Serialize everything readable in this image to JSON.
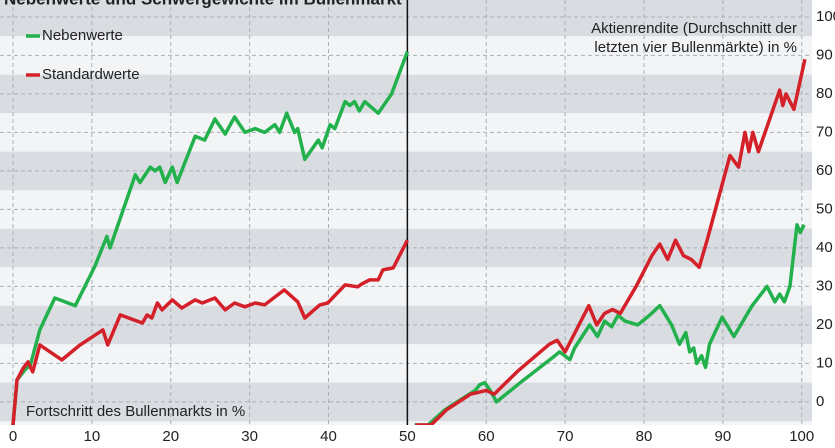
{
  "chart_data": {
    "type": "line",
    "title": "Nebenwerte und Schwergewichte im Bullenmarkt",
    "annotations": [
      "Aktienrendite (Durchschnitt der",
      "letzten vier Bullenmärkte) in %",
      "Fortschritt des Bullenmarkts in %"
    ],
    "divider_x": 50,
    "xlim": [
      -1.65,
      101.3
    ],
    "ylim": [
      -6,
      104.4
    ],
    "xticks": [
      0,
      10,
      20,
      30,
      40,
      50,
      60,
      70,
      80,
      90,
      100
    ],
    "yticks": [
      0,
      10,
      20,
      30,
      40,
      50,
      60,
      70,
      80,
      90,
      100
    ],
    "grid": true,
    "legend": "upper left",
    "series": [
      {
        "name": "Nebenwerte",
        "color": "#22b14c",
        "x": [
          0,
          0.5,
          1.5,
          2.2,
          3.4,
          5.3,
          7.9,
          10.4,
          11.9,
          12.3,
          15.5,
          16.1,
          17.4,
          18,
          18.6,
          19.3,
          20.2,
          20.8,
          23.1,
          24.3,
          25.6,
          26.9,
          28.1,
          29.4,
          30.7,
          31.9,
          33.2,
          33.8,
          34.7,
          35.7,
          36.1,
          37,
          38.7,
          39.2,
          40.2,
          40.8,
          42.1,
          42.7,
          43.3,
          43.9,
          44.6,
          46.3,
          48,
          50,
          null,
          50.9,
          52.6,
          54.8,
          58.6,
          59.2,
          59.8,
          60.5,
          61.3,
          64.3,
          68.7,
          69.3,
          70.6,
          71.2,
          73.1,
          74.1,
          75,
          75.9,
          76.7,
          77.6,
          79.2,
          79.8,
          80.7,
          82,
          83.5,
          84.5,
          85.3,
          85.8,
          86.3,
          86.7,
          87.3,
          87.8,
          88.3,
          89.9,
          91.4,
          93.7,
          95.6,
          96.6,
          97.2,
          97.8,
          98.5,
          99.4,
          99.8,
          100.3
        ],
        "values": [
          -6,
          5.7,
          8.3,
          9.6,
          18.7,
          27,
          25,
          35.3,
          43,
          40,
          59,
          57,
          61,
          60,
          61,
          57,
          61,
          57,
          69,
          68,
          73.5,
          69.6,
          74,
          70,
          71,
          70,
          72,
          70,
          75,
          70,
          71,
          63,
          68,
          66,
          72,
          71,
          78,
          77,
          78,
          75.6,
          78,
          75,
          80,
          91,
          null,
          -6,
          -6,
          -2,
          3,
          4.5,
          5,
          3,
          0,
          5,
          12,
          13,
          11,
          14,
          20,
          17,
          21,
          19.5,
          22.5,
          21,
          20,
          21,
          22.5,
          25,
          20,
          15,
          18,
          13,
          14,
          10,
          12,
          9,
          15,
          22,
          17,
          25,
          30,
          26,
          28,
          26,
          30,
          46,
          44,
          46
        ]
      },
      {
        "name": "Standardwerte",
        "color": "#d42028",
        "x": [
          0,
          0.5,
          1.3,
          1.9,
          2.5,
          3.4,
          6.2,
          8.5,
          11.4,
          12,
          13.6,
          16.4,
          17,
          17.6,
          18.3,
          18.9,
          20.2,
          21.4,
          23.1,
          24,
          25.6,
          26.9,
          28.1,
          29.4,
          30.7,
          31.9,
          34.4,
          36.1,
          37,
          38.9,
          39.9,
          42.1,
          43.7,
          44.2,
          45.2,
          46.3,
          46.9,
          48.2,
          50,
          null,
          51,
          53,
          55,
          58,
          60,
          61,
          64,
          68,
          69,
          70,
          71,
          73,
          74,
          75,
          76,
          77,
          79,
          81,
          82,
          83,
          84,
          85,
          86,
          87,
          88,
          90.9,
          92,
          92.8,
          93.3,
          93.8,
          94.5,
          97.2,
          97.6,
          98,
          99,
          100.4
        ],
        "values": [
          -6,
          5.7,
          8.8,
          10.4,
          7.8,
          14.8,
          10.9,
          14.8,
          18.7,
          14.8,
          22.6,
          20.5,
          22.6,
          21.8,
          25.7,
          23.9,
          26.5,
          24.4,
          26.5,
          25.7,
          27,
          23.9,
          25.7,
          24.7,
          25.7,
          25.2,
          29.1,
          26,
          21.8,
          25.2,
          25.7,
          30.4,
          29.9,
          30.6,
          31.7,
          31.7,
          34.3,
          34.8,
          42,
          null,
          -6,
          -6,
          -2,
          2,
          3,
          2,
          8,
          15,
          16,
          13,
          17,
          25,
          20,
          23,
          24,
          23,
          30,
          38,
          41,
          37,
          42,
          38,
          37,
          35,
          42,
          64,
          61,
          70,
          65,
          70,
          65,
          81,
          77,
          80,
          76,
          89
        ]
      }
    ]
  }
}
